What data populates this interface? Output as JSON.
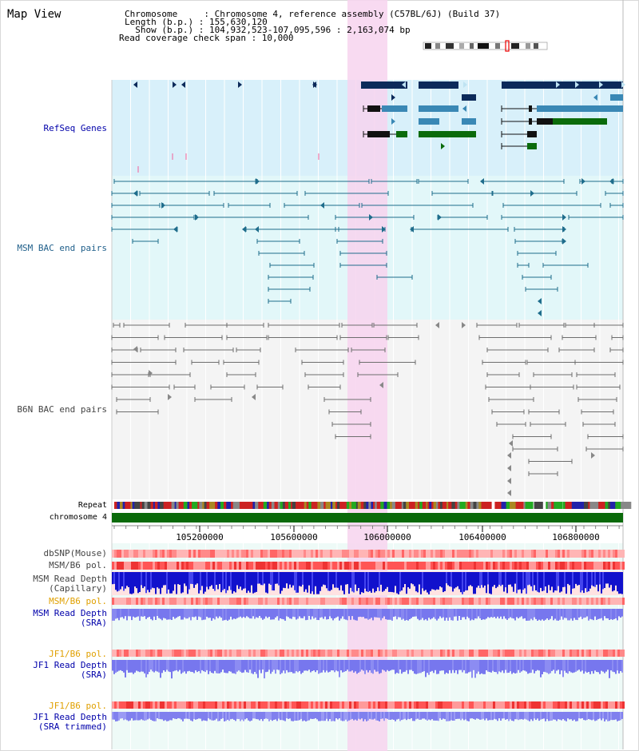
{
  "view_title": "Map View",
  "header": {
    "chromosome_line": "Chromosome     : Chromosome 4, reference assembly (C57BL/6J) (Build 37)",
    "length_line": "Length (b.p.) : 155,630,120",
    "show_line": "  Show (b.p.) : 104,932,523-107,095,596 : 2,163,074 bp",
    "coverage_line": "Read coverage check span : 10,000"
  },
  "colors": {
    "refseq_bg": "#d8f0fa",
    "msm_bg": "#e2f7f9",
    "b6n_bg": "#f4f4f4",
    "highlight": "#f7d4ef",
    "refseq_dark": "#0c2a5a",
    "refseq_mid": "#3a88b5",
    "refseq_green": "#0b6b0b",
    "msm_line": "#1f6d8c",
    "b6n_line": "#6e6e6e",
    "chrom_bar": "#0a6a0a",
    "pol_red": "#ff4f4f",
    "depth_blue": "#1111cc",
    "depth_light": "#7777ee"
  },
  "tracks": {
    "refseq": "RefSeq Genes",
    "msm_bac": "MSM BAC end pairs",
    "b6n_bac": "B6N BAC end pairs",
    "repeat": "Repeat",
    "chromosome": "chromosome 4",
    "dbsnp": "dbSNP(Mouse)",
    "msm_b6_pol_1": "MSM/B6 pol.",
    "msm_read_depth_cap_1": "MSM Read Depth",
    "msm_read_depth_cap_2": "(Capillary)",
    "msm_b6_pol_2": "MSM/B6 pol.",
    "msm_read_depth_sra_1": "MSM Read Depth",
    "msm_read_depth_sra_2": "(SRA)",
    "jf1_b6_pol_1": "JF1/B6 pol.",
    "jf1_read_depth_sra_1": "JF1 Read Depth",
    "jf1_read_depth_sra_2": "(SRA)",
    "jf1_b6_pol_2": "JF1/B6 pol.",
    "jf1_read_depth_trim_1": "JF1 Read Depth",
    "jf1_read_depth_trim_2": "(SRA trimmed)"
  },
  "axis": {
    "ticks": [
      "105200000",
      "105600000",
      "106000000",
      "106400000",
      "106800000"
    ]
  }
}
